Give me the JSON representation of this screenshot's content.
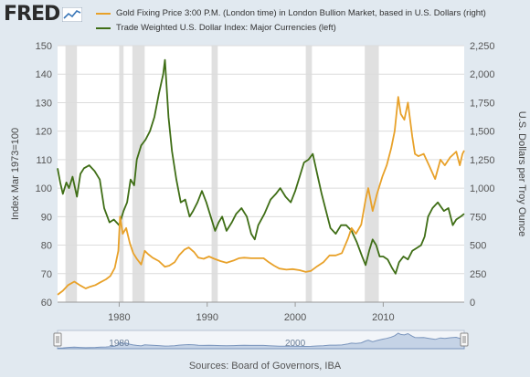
{
  "header": {
    "logo_text": "FRED",
    "logo_icon": "line-chart-icon"
  },
  "colors": {
    "gold": "#e8a129",
    "usd": "#3f6e16",
    "plot_bg": "#ffffff",
    "page_bg": "#e1e9f0",
    "recession": "#e0e0e0",
    "navigator_fill": "#c5d3e6",
    "navigator_line": "#7a95bd"
  },
  "chart_data": {
    "type": "line",
    "title": "",
    "xlabel": "",
    "ylabel_left": "Index Mar 1973=100",
    "ylabel_right": "U.S. Dollars per Troy Ounce",
    "xlim": [
      1973,
      2019.2
    ],
    "ylim_left": [
      60,
      150
    ],
    "ylim_right": [
      0,
      2250
    ],
    "x_ticks": [
      1980,
      1990,
      2000,
      2010
    ],
    "y_ticks_left": [
      60,
      70,
      80,
      90,
      100,
      110,
      120,
      130,
      140,
      150
    ],
    "y_ticks_right": [
      "0",
      "250",
      "500",
      "750",
      "1,000",
      "1,250",
      "1,500",
      "1,750",
      "2,000",
      "2,250"
    ],
    "y_ticks_right_values": [
      0,
      250,
      500,
      750,
      1000,
      1250,
      1500,
      1750,
      2000,
      2250
    ],
    "grid": true,
    "legend_position": "top",
    "recessions": [
      [
        1973.9,
        1975.2
      ],
      [
        1980.0,
        1980.5
      ],
      [
        1981.5,
        1982.9
      ],
      [
        1990.5,
        1991.2
      ],
      [
        2001.2,
        2001.9
      ],
      [
        2007.9,
        2009.5
      ]
    ],
    "series": [
      {
        "name": "Gold Fixing Price 3:00 P.M. (London time) in London Bullion Market, based in U.S. Dollars (right)",
        "axis": "right",
        "x": [
          1973.0,
          1973.6,
          1974.2,
          1974.9,
          1975.5,
          1976.2,
          1976.7,
          1977.3,
          1977.9,
          1978.5,
          1979.0,
          1979.5,
          1979.9,
          1980.1,
          1980.4,
          1980.8,
          1981.2,
          1981.6,
          1982.0,
          1982.5,
          1982.9,
          1983.3,
          1983.8,
          1984.5,
          1985.2,
          1985.7,
          1986.3,
          1986.8,
          1987.4,
          1987.9,
          1988.5,
          1989.0,
          1989.6,
          1990.2,
          1990.8,
          1991.5,
          1992.2,
          1993.0,
          1993.6,
          1994.2,
          1995.0,
          1995.8,
          1996.4,
          1997.0,
          1997.6,
          1998.2,
          1999.0,
          1999.7,
          2000.5,
          2001.2,
          2001.8,
          2002.5,
          2003.2,
          2003.9,
          2004.6,
          2005.3,
          2006.0,
          2006.4,
          2006.9,
          2007.5,
          2008.0,
          2008.3,
          2008.8,
          2009.3,
          2009.9,
          2010.4,
          2010.9,
          2011.3,
          2011.7,
          2012.0,
          2012.4,
          2012.8,
          2013.3,
          2013.6,
          2014.0,
          2014.6,
          2015.2,
          2015.9,
          2016.5,
          2017.0,
          2017.6,
          2018.3,
          2018.7,
          2019.0,
          2019.2
        ],
        "values": [
          65,
          100,
          150,
          180,
          150,
          120,
          135,
          150,
          175,
          200,
          230,
          300,
          450,
          750,
          600,
          650,
          520,
          430,
          380,
          330,
          450,
          420,
          390,
          360,
          310,
          320,
          350,
          410,
          460,
          480,
          440,
          390,
          380,
          400,
          380,
          360,
          345,
          365,
          385,
          390,
          385,
          385,
          385,
          350,
          320,
          295,
          285,
          290,
          280,
          265,
          275,
          315,
          350,
          410,
          410,
          430,
          560,
          650,
          600,
          680,
          900,
          1000,
          800,
          950,
          1100,
          1200,
          1350,
          1500,
          1800,
          1650,
          1600,
          1750,
          1450,
          1300,
          1280,
          1300,
          1200,
          1080,
          1250,
          1200,
          1270,
          1320,
          1200,
          1300,
          1330
        ]
      },
      {
        "name": "Trade Weighted U.S. Dollar Index: Major Currencies (left)",
        "axis": "left",
        "x": [
          1973.0,
          1973.3,
          1973.6,
          1974.0,
          1974.3,
          1974.7,
          1975.2,
          1975.6,
          1976.0,
          1976.6,
          1977.2,
          1977.8,
          1978.3,
          1978.9,
          1979.4,
          1980.0,
          1980.5,
          1980.9,
          1981.3,
          1981.7,
          1982.0,
          1982.5,
          1983.0,
          1983.5,
          1984.0,
          1984.5,
          1985.0,
          1985.2,
          1985.6,
          1986.0,
          1986.5,
          1987.0,
          1987.5,
          1988.0,
          1988.4,
          1988.9,
          1989.4,
          1989.9,
          1990.4,
          1990.9,
          1991.3,
          1991.7,
          1992.2,
          1992.8,
          1993.3,
          1993.9,
          1994.5,
          1995.0,
          1995.4,
          1995.8,
          1996.5,
          1997.2,
          1997.8,
          1998.3,
          1998.9,
          1999.5,
          2000.0,
          2000.5,
          2001.0,
          2001.5,
          2002.0,
          2002.5,
          2003.0,
          2003.5,
          2004.0,
          2004.6,
          2005.2,
          2005.8,
          2006.4,
          2007.0,
          2007.6,
          2008.0,
          2008.4,
          2008.8,
          2009.2,
          2009.6,
          2010.0,
          2010.5,
          2011.0,
          2011.4,
          2011.8,
          2012.3,
          2012.8,
          2013.3,
          2013.8,
          2014.3,
          2014.7,
          2015.1,
          2015.6,
          2016.2,
          2016.9,
          2017.4,
          2017.9,
          2018.3,
          2018.8,
          2019.2
        ],
        "values": [
          107,
          102,
          98,
          102,
          100,
          104,
          97,
          105,
          107,
          108,
          106,
          103,
          93,
          88,
          89,
          87,
          92,
          95,
          103,
          101,
          110,
          115,
          117,
          120,
          125,
          133,
          140,
          145,
          125,
          113,
          103,
          95,
          96,
          90,
          92,
          95,
          99,
          95,
          90,
          85,
          88,
          90,
          85,
          88,
          91,
          93,
          90,
          84,
          82,
          87,
          91,
          96,
          98,
          100,
          97,
          95,
          99,
          104,
          109,
          110,
          112,
          105,
          98,
          92,
          86,
          84,
          87,
          87,
          85,
          81,
          76,
          73,
          78,
          82,
          80,
          76,
          76,
          75,
          72,
          70,
          74,
          76,
          75,
          78,
          79,
          80,
          83,
          90,
          93,
          95,
          92,
          93,
          87,
          89,
          90,
          91
        ]
      }
    ]
  },
  "navigator": {
    "tick_labels": [
      "1980",
      "2000"
    ],
    "tick_values": [
      1980,
      2000
    ]
  },
  "footer": {
    "source_text": "Sources: Board of Governors, IBA"
  }
}
